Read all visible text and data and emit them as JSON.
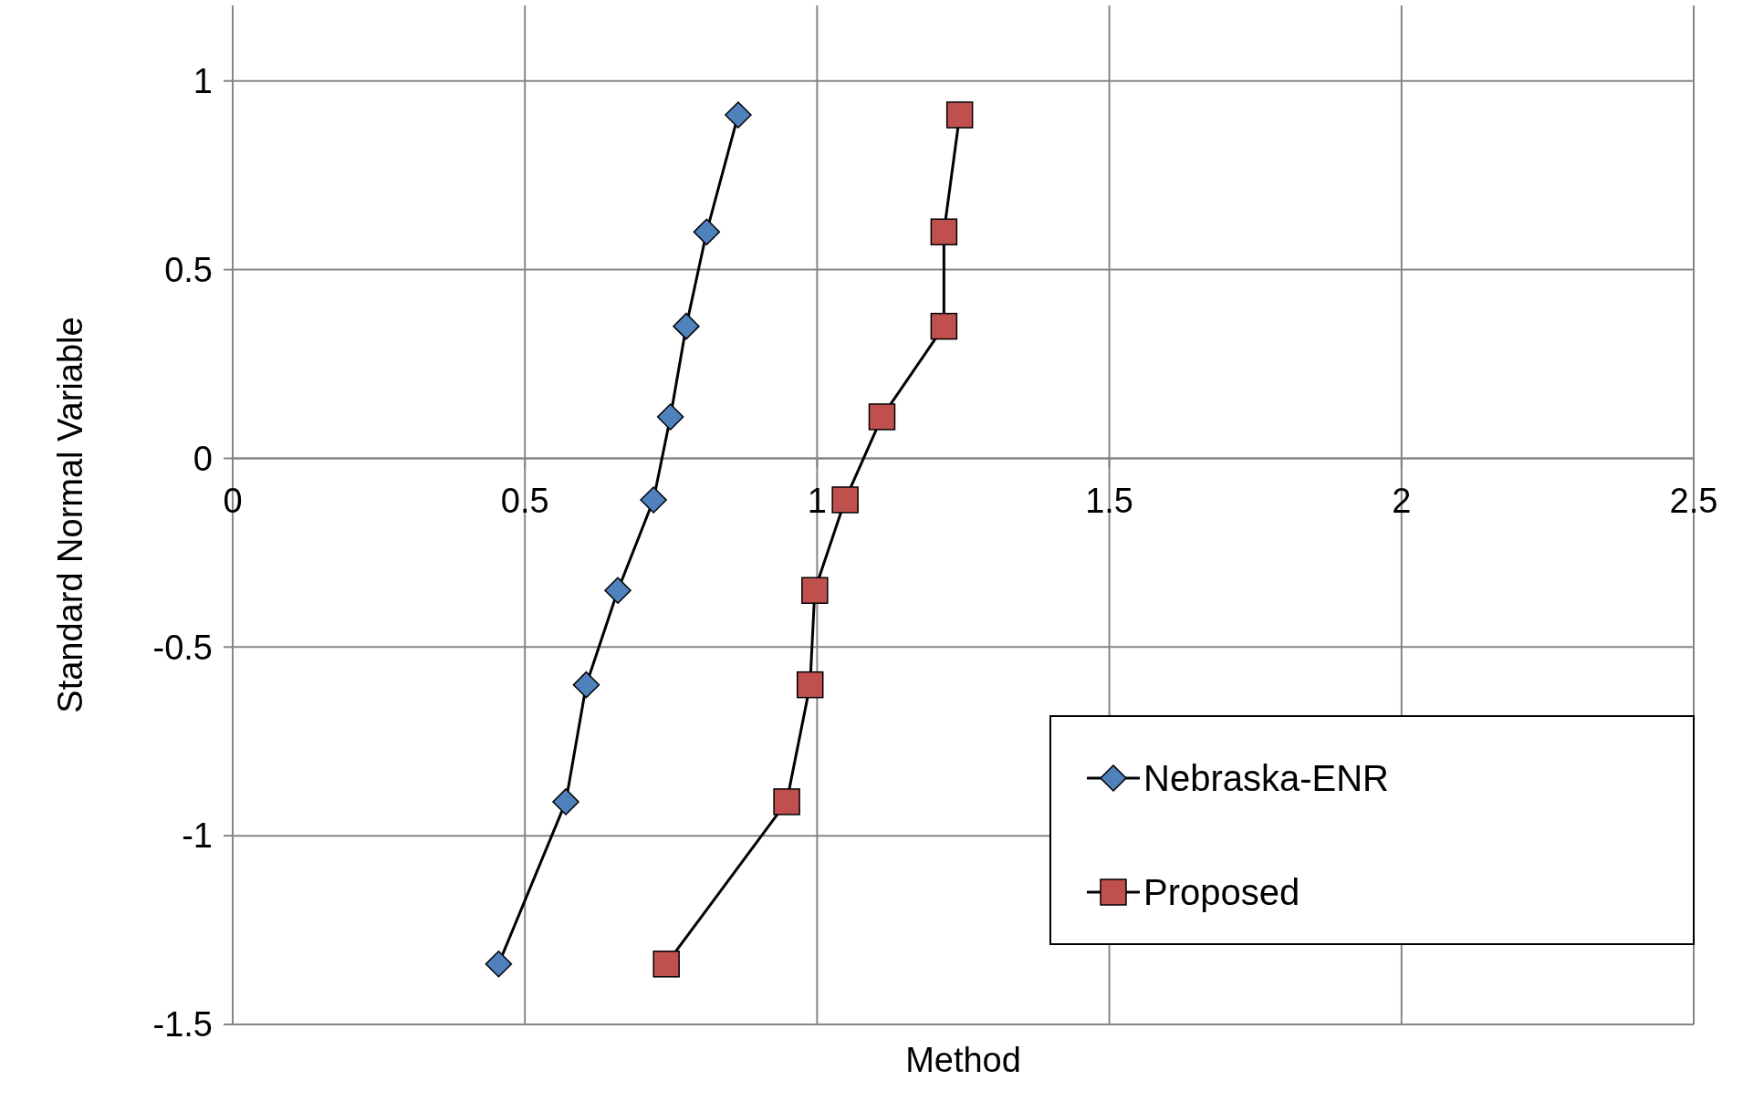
{
  "chart_data": {
    "type": "line",
    "xlabel": "Method",
    "ylabel": "Standard Normal Variable",
    "xlim": [
      0,
      2.5
    ],
    "xticks": [
      0,
      0.5,
      1,
      1.5,
      2,
      2.5
    ],
    "ylim": [
      -1.5,
      1.2
    ],
    "yticks": [
      -1.5,
      -1,
      -0.5,
      0,
      0.5,
      1
    ],
    "grid": true,
    "legend": "bottom right",
    "series": [
      {
        "name": "Nebraska-ENR",
        "color": "#4f81bd",
        "marker": "diamond",
        "x": [
          0.455,
          0.57,
          0.605,
          0.659,
          0.72,
          0.749,
          0.776,
          0.811,
          0.865
        ],
        "values": [
          -1.34,
          -0.91,
          -0.6,
          -0.35,
          -0.11,
          0.11,
          0.35,
          0.6,
          0.91
        ]
      },
      {
        "name": "Proposed",
        "color": "#c0504d",
        "marker": "square",
        "x": [
          0.742,
          0.948,
          0.988,
          0.996,
          1.048,
          1.111,
          1.217,
          1.217,
          1.244
        ],
        "values": [
          -1.34,
          -0.91,
          -0.6,
          -0.35,
          -0.11,
          0.11,
          0.35,
          0.6,
          0.91
        ]
      }
    ]
  }
}
